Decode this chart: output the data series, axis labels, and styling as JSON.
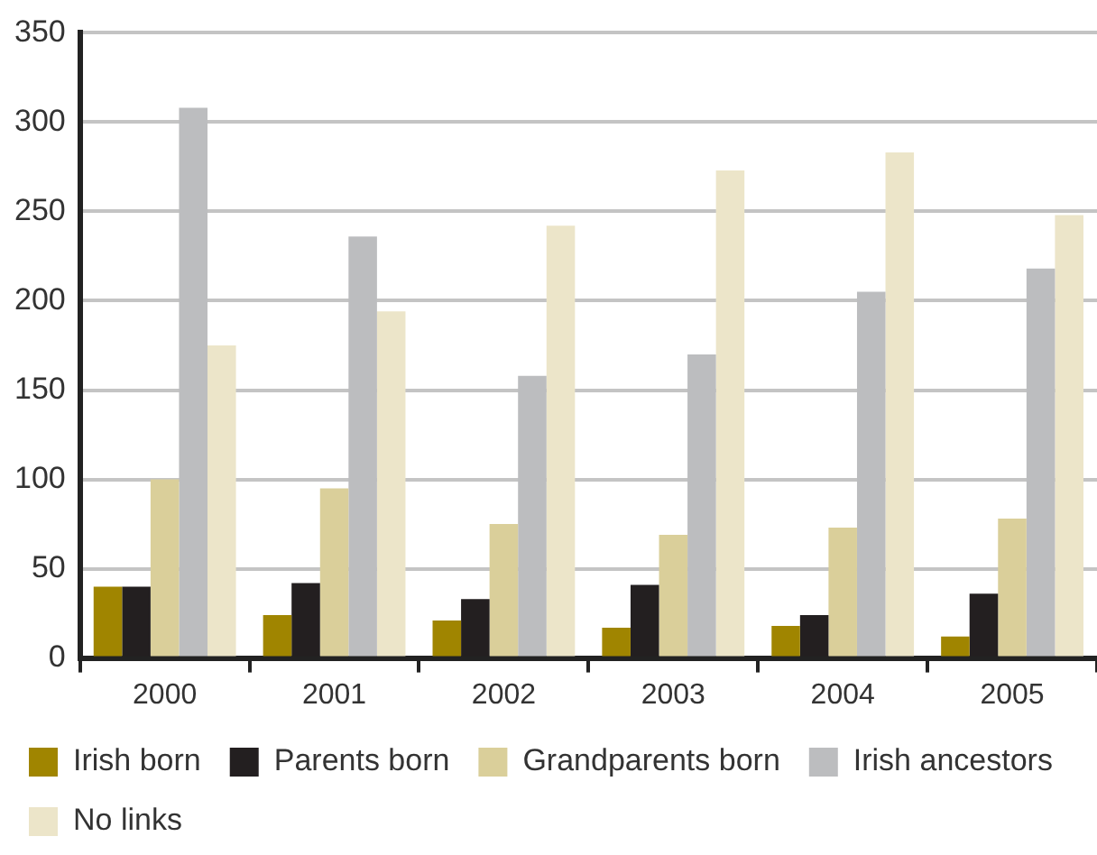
{
  "chart_data": {
    "type": "bar",
    "categories": [
      "2000",
      "2001",
      "2002",
      "2003",
      "2004",
      "2005"
    ],
    "series": [
      {
        "name": "Irish born",
        "color": "#a08500",
        "values": [
          40,
          24,
          21,
          17,
          18,
          12
        ]
      },
      {
        "name": "Parents born",
        "color": "#231f20",
        "values": [
          40,
          42,
          33,
          41,
          24,
          36
        ]
      },
      {
        "name": "Grandparents born",
        "color": "#dacf9a",
        "values": [
          100,
          95,
          75,
          69,
          73,
          78
        ]
      },
      {
        "name": "Irish ancestors",
        "color": "#bcbdbf",
        "values": [
          308,
          236,
          158,
          170,
          205,
          218
        ]
      },
      {
        "name": "No links",
        "color": "#ece5c9",
        "values": [
          175,
          194,
          242,
          273,
          283,
          248
        ]
      }
    ],
    "ylim": [
      0,
      350
    ],
    "yticks": [
      0,
      50,
      100,
      150,
      200,
      250,
      300,
      350
    ],
    "grid": "y",
    "legend": "bottom"
  }
}
